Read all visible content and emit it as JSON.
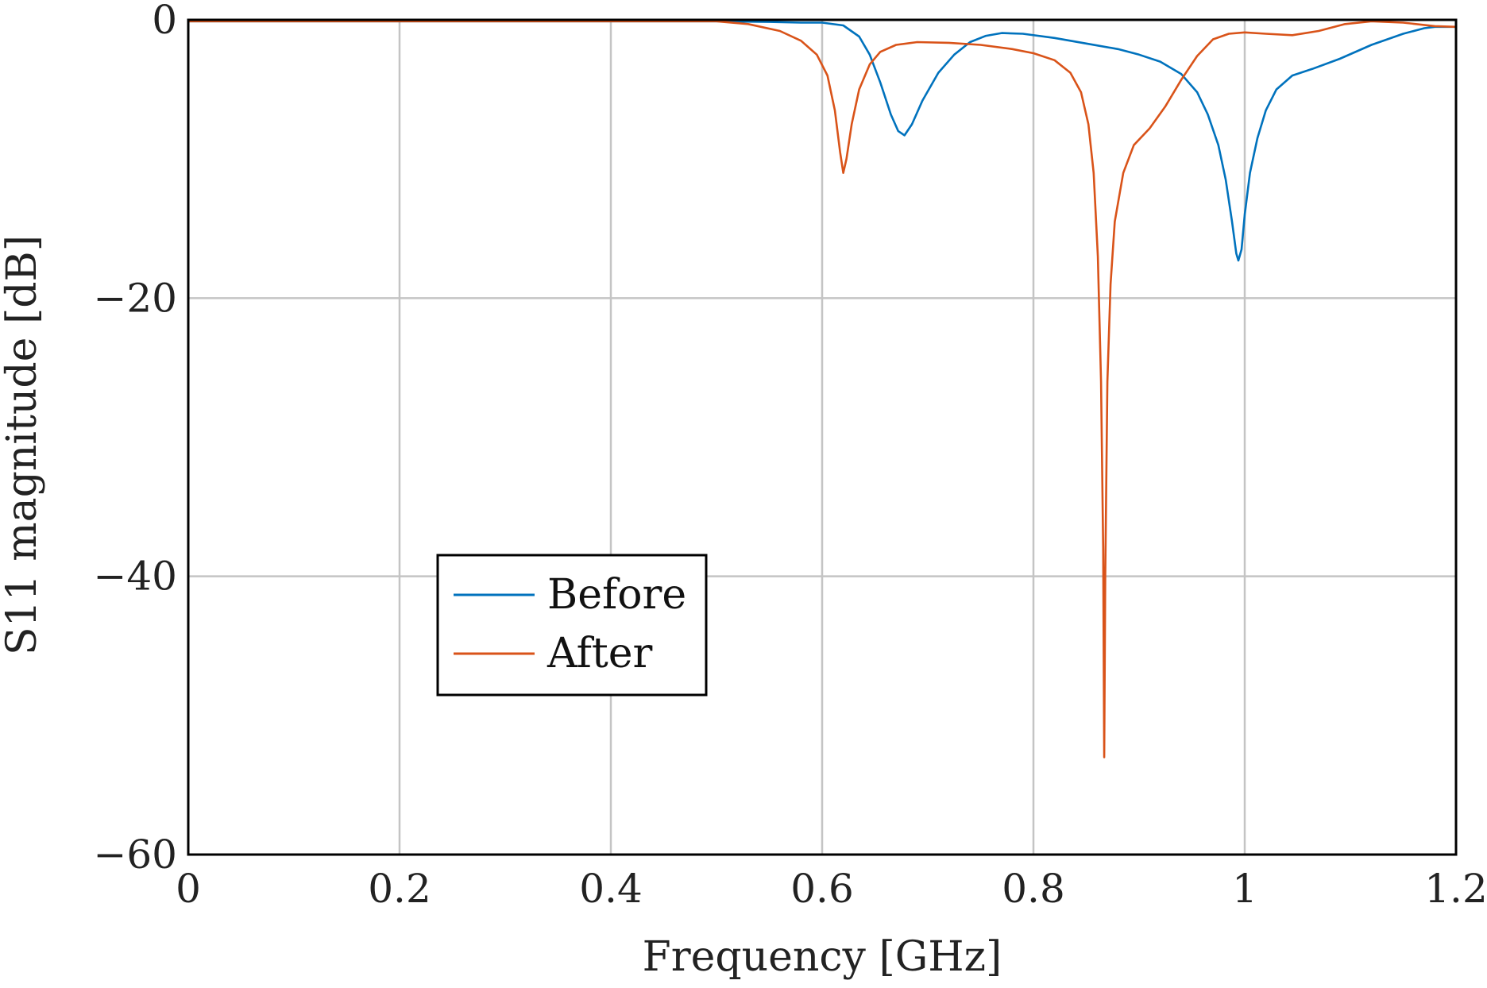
{
  "chart_data": {
    "type": "line",
    "title": "",
    "xlabel": "Frequency [GHz]",
    "ylabel": "S11 magnitude [dB]",
    "xlim": [
      0,
      1.2
    ],
    "ylim": [
      -60,
      0
    ],
    "xticks": [
      0,
      0.2,
      0.4,
      0.6,
      0.8,
      1,
      1.2
    ],
    "xtick_labels": [
      "0",
      "0.2",
      "0.4",
      "0.6",
      "0.8",
      "1",
      "1.2"
    ],
    "yticks": [
      0,
      -20,
      -40,
      -60
    ],
    "ytick_labels": [
      "0",
      "−20",
      "−40",
      "−60"
    ],
    "grid": true,
    "legend_position": "lower-left",
    "series": [
      {
        "name": "Before",
        "color": "#0072BD",
        "points": [
          [
            0.0,
            -0.1
          ],
          [
            0.1,
            -0.1
          ],
          [
            0.2,
            -0.1
          ],
          [
            0.3,
            -0.1
          ],
          [
            0.4,
            -0.1
          ],
          [
            0.5,
            -0.1
          ],
          [
            0.55,
            -0.15
          ],
          [
            0.58,
            -0.2
          ],
          [
            0.6,
            -0.2
          ],
          [
            0.62,
            -0.4
          ],
          [
            0.635,
            -1.2
          ],
          [
            0.645,
            -2.5
          ],
          [
            0.655,
            -4.5
          ],
          [
            0.665,
            -6.8
          ],
          [
            0.672,
            -8.0
          ],
          [
            0.678,
            -8.3
          ],
          [
            0.685,
            -7.5
          ],
          [
            0.695,
            -5.8
          ],
          [
            0.71,
            -3.8
          ],
          [
            0.725,
            -2.5
          ],
          [
            0.74,
            -1.6
          ],
          [
            0.755,
            -1.15
          ],
          [
            0.77,
            -0.95
          ],
          [
            0.79,
            -1.0
          ],
          [
            0.82,
            -1.3
          ],
          [
            0.85,
            -1.7
          ],
          [
            0.88,
            -2.1
          ],
          [
            0.9,
            -2.5
          ],
          [
            0.92,
            -3.0
          ],
          [
            0.94,
            -3.9
          ],
          [
            0.955,
            -5.2
          ],
          [
            0.965,
            -6.8
          ],
          [
            0.975,
            -9.0
          ],
          [
            0.982,
            -11.5
          ],
          [
            0.988,
            -14.5
          ],
          [
            0.992,
            -16.8
          ],
          [
            0.994,
            -17.3
          ],
          [
            0.997,
            -16.5
          ],
          [
            1.0,
            -14.0
          ],
          [
            1.005,
            -11.0
          ],
          [
            1.012,
            -8.5
          ],
          [
            1.02,
            -6.5
          ],
          [
            1.03,
            -5.0
          ],
          [
            1.045,
            -4.0
          ],
          [
            1.065,
            -3.5
          ],
          [
            1.09,
            -2.8
          ],
          [
            1.12,
            -1.8
          ],
          [
            1.15,
            -1.0
          ],
          [
            1.17,
            -0.6
          ],
          [
            1.18,
            -0.5
          ],
          [
            1.2,
            -0.5
          ]
        ]
      },
      {
        "name": "After",
        "color": "#D95319",
        "points": [
          [
            0.0,
            -0.1
          ],
          [
            0.2,
            -0.1
          ],
          [
            0.4,
            -0.1
          ],
          [
            0.5,
            -0.1
          ],
          [
            0.53,
            -0.3
          ],
          [
            0.56,
            -0.8
          ],
          [
            0.58,
            -1.5
          ],
          [
            0.595,
            -2.5
          ],
          [
            0.605,
            -4.0
          ],
          [
            0.612,
            -6.5
          ],
          [
            0.617,
            -9.5
          ],
          [
            0.62,
            -11.0
          ],
          [
            0.623,
            -10.0
          ],
          [
            0.628,
            -7.5
          ],
          [
            0.635,
            -5.0
          ],
          [
            0.645,
            -3.2
          ],
          [
            0.655,
            -2.3
          ],
          [
            0.67,
            -1.8
          ],
          [
            0.69,
            -1.6
          ],
          [
            0.72,
            -1.65
          ],
          [
            0.75,
            -1.8
          ],
          [
            0.78,
            -2.1
          ],
          [
            0.8,
            -2.4
          ],
          [
            0.82,
            -2.9
          ],
          [
            0.835,
            -3.8
          ],
          [
            0.845,
            -5.2
          ],
          [
            0.852,
            -7.5
          ],
          [
            0.857,
            -11.0
          ],
          [
            0.861,
            -17.0
          ],
          [
            0.864,
            -26.0
          ],
          [
            0.866,
            -38.0
          ],
          [
            0.867,
            -53.0
          ],
          [
            0.868,
            -40.0
          ],
          [
            0.87,
            -26.0
          ],
          [
            0.873,
            -19.0
          ],
          [
            0.877,
            -14.5
          ],
          [
            0.885,
            -11.0
          ],
          [
            0.895,
            -9.0
          ],
          [
            0.91,
            -7.8
          ],
          [
            0.925,
            -6.2
          ],
          [
            0.94,
            -4.3
          ],
          [
            0.955,
            -2.6
          ],
          [
            0.97,
            -1.4
          ],
          [
            0.985,
            -1.0
          ],
          [
            1.0,
            -0.9
          ],
          [
            1.02,
            -1.0
          ],
          [
            1.045,
            -1.1
          ],
          [
            1.07,
            -0.8
          ],
          [
            1.095,
            -0.3
          ],
          [
            1.12,
            -0.1
          ],
          [
            1.15,
            -0.2
          ],
          [
            1.18,
            -0.45
          ],
          [
            1.2,
            -0.5
          ]
        ]
      }
    ]
  }
}
